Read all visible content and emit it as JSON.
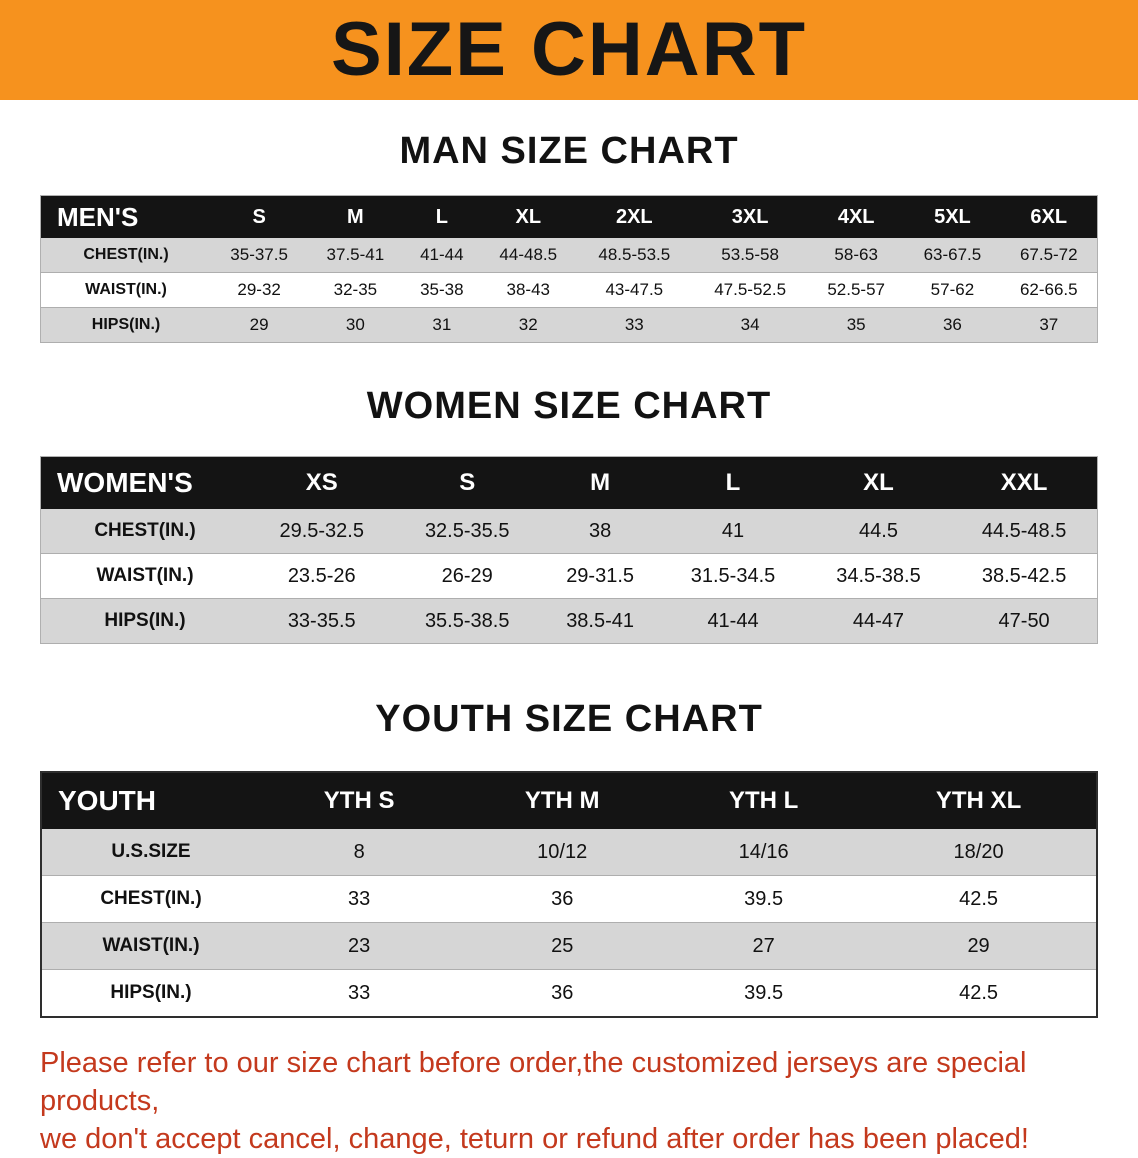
{
  "banner": {
    "title": "SIZE CHART",
    "bg_color": "#f6921e",
    "text_color": "#161616"
  },
  "sections": {
    "men": {
      "heading": "MAN SIZE CHART",
      "header": [
        "MEN'S",
        "S",
        "M",
        "L",
        "XL",
        "2XL",
        "3XL",
        "4XL",
        "5XL",
        "6XL"
      ],
      "rows": [
        [
          "CHEST(IN.)",
          "35-37.5",
          "37.5-41",
          "41-44",
          "44-48.5",
          "48.5-53.5",
          "53.5-58",
          "58-63",
          "63-67.5",
          "67.5-72"
        ],
        [
          "WAIST(IN.)",
          "29-32",
          "32-35",
          "35-38",
          "38-43",
          "43-47.5",
          "47.5-52.5",
          "52.5-57",
          "57-62",
          "62-66.5"
        ],
        [
          "HIPS(IN.)",
          "29",
          "30",
          "31",
          "32",
          "33",
          "34",
          "35",
          "36",
          "37"
        ]
      ]
    },
    "women": {
      "heading": "WOMEN SIZE CHART",
      "header": [
        "WOMEN'S",
        "XS",
        "S",
        "M",
        "L",
        "XL",
        "XXL"
      ],
      "rows": [
        [
          "CHEST(IN.)",
          "29.5-32.5",
          "32.5-35.5",
          "38",
          "41",
          "44.5",
          "44.5-48.5"
        ],
        [
          "WAIST(IN.)",
          "23.5-26",
          "26-29",
          "29-31.5",
          "31.5-34.5",
          "34.5-38.5",
          "38.5-42.5"
        ],
        [
          "HIPS(IN.)",
          "33-35.5",
          "35.5-38.5",
          "38.5-41",
          "41-44",
          "44-47",
          "47-50"
        ]
      ]
    },
    "youth": {
      "heading": "YOUTH SIZE CHART",
      "header": [
        "YOUTH",
        "YTH S",
        "YTH M",
        "YTH L",
        "YTH XL"
      ],
      "rows": [
        [
          "U.S.SIZE",
          "8",
          "10/12",
          "14/16",
          "18/20"
        ],
        [
          "CHEST(IN.)",
          "33",
          "36",
          "39.5",
          "42.5"
        ],
        [
          "WAIST(IN.)",
          "23",
          "25",
          "27",
          "29"
        ],
        [
          "HIPS(IN.)",
          "33",
          "36",
          "39.5",
          "42.5"
        ]
      ]
    }
  },
  "footer": {
    "line1": "Please refer to our size chart before order,the customized jerseys are special products,",
    "line2": "we don't accept cancel, change, teturn or refund after order has been placed!",
    "text_color": "#c4391d"
  }
}
